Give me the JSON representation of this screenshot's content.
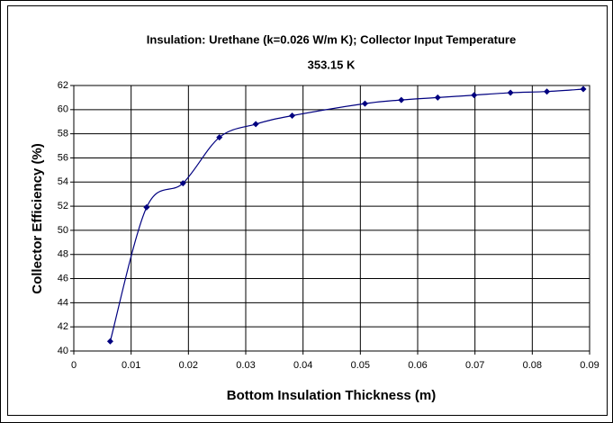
{
  "chart_data": {
    "type": "line",
    "title": [
      "Insulation: Urethane (k=0.026 W/m K); Collector Input Temperature",
      "353.15 K"
    ],
    "x_label": "Bottom Insulation Thickness (m)",
    "y_label": "Collector Efficiency (%)",
    "x": [
      0.00635,
      0.0127,
      0.01905,
      0.0254,
      0.03175,
      0.0381,
      0.0508,
      0.05715,
      0.0635,
      0.06985,
      0.0762,
      0.08255,
      0.0889
    ],
    "series": [
      {
        "name": "Collector Efficiency",
        "color": "#000080",
        "values": [
          40.8,
          51.9,
          53.9,
          57.7,
          58.8,
          59.5,
          60.5,
          60.8,
          61.0,
          61.2,
          61.4,
          61.5,
          61.7
        ]
      }
    ],
    "xlim": [
      0,
      0.09
    ],
    "xticks": [
      0,
      0.01,
      0.02,
      0.03,
      0.04,
      0.05,
      0.06,
      0.07,
      0.08,
      0.09
    ],
    "ylim": [
      40,
      62
    ],
    "yticks": [
      40,
      42,
      44,
      46,
      48,
      50,
      52,
      54,
      56,
      58,
      60,
      62
    ],
    "grid": true,
    "smooth": true
  }
}
